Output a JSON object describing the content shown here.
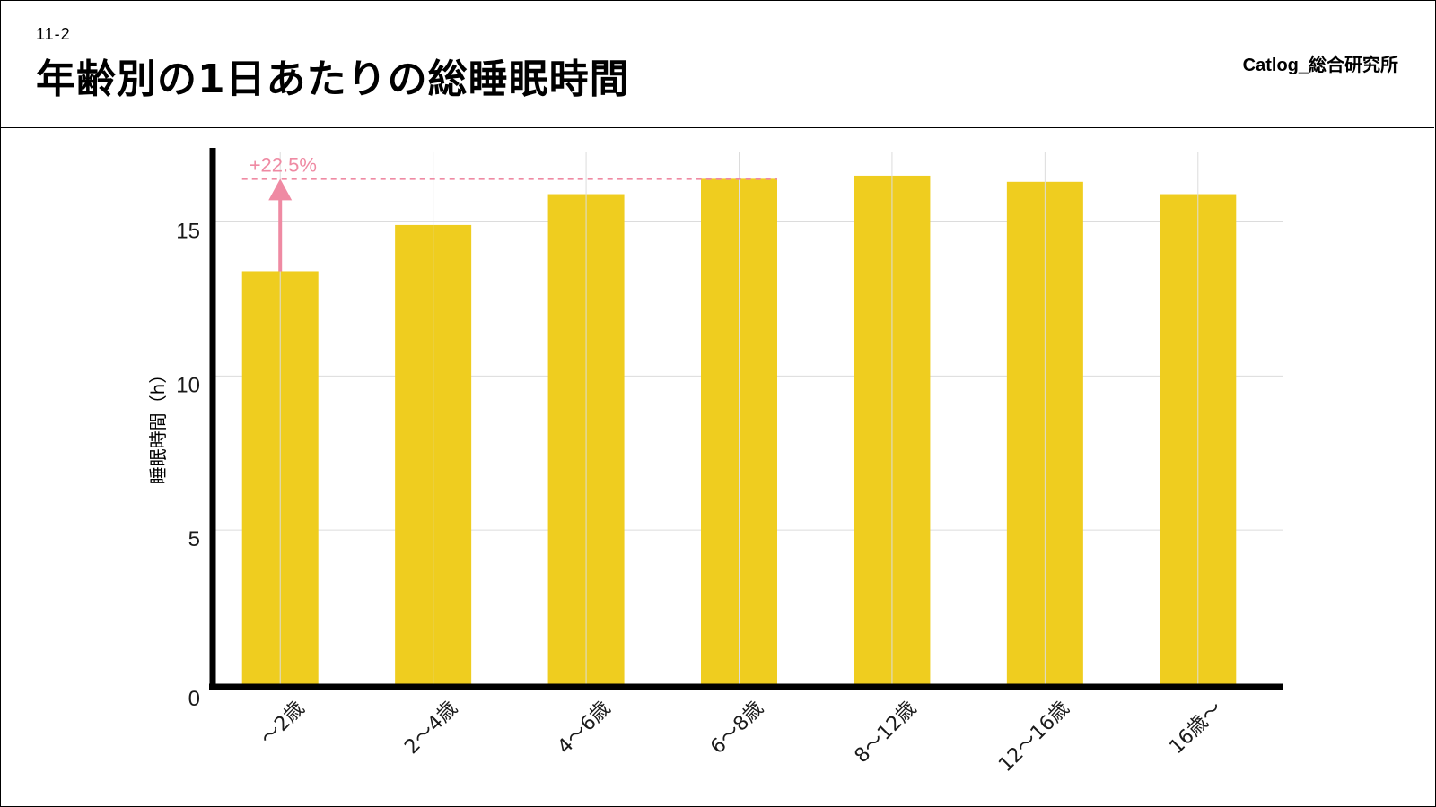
{
  "header": {
    "slide_number": "11-2",
    "title": "年齢別の1日あたりの総睡眠時間",
    "brand": "Catlog_総合研究所"
  },
  "colors": {
    "bar": "#efcd1f",
    "annotation": "#ef8aa3",
    "grid": "#dcdcdc",
    "axis": "#000000"
  },
  "chart_data": {
    "type": "bar",
    "categories": [
      "～2歳",
      "2～4歳",
      "4～6歳",
      "6～8歳",
      "8～12歳",
      "12～16歳",
      "16歳～"
    ],
    "values": [
      13.4,
      14.9,
      15.9,
      16.4,
      16.5,
      16.3,
      15.9
    ],
    "xlabel": "",
    "ylabel": "睡眠時間（h）",
    "ylim": [
      0,
      17.4
    ],
    "yticks": [
      0,
      5,
      10,
      15
    ],
    "grid": true,
    "annotations": [
      {
        "text": "+22.5%",
        "from_category": "～2歳",
        "to_category": "6～8歳",
        "from_value": 13.4,
        "to_value": 16.4
      }
    ]
  }
}
